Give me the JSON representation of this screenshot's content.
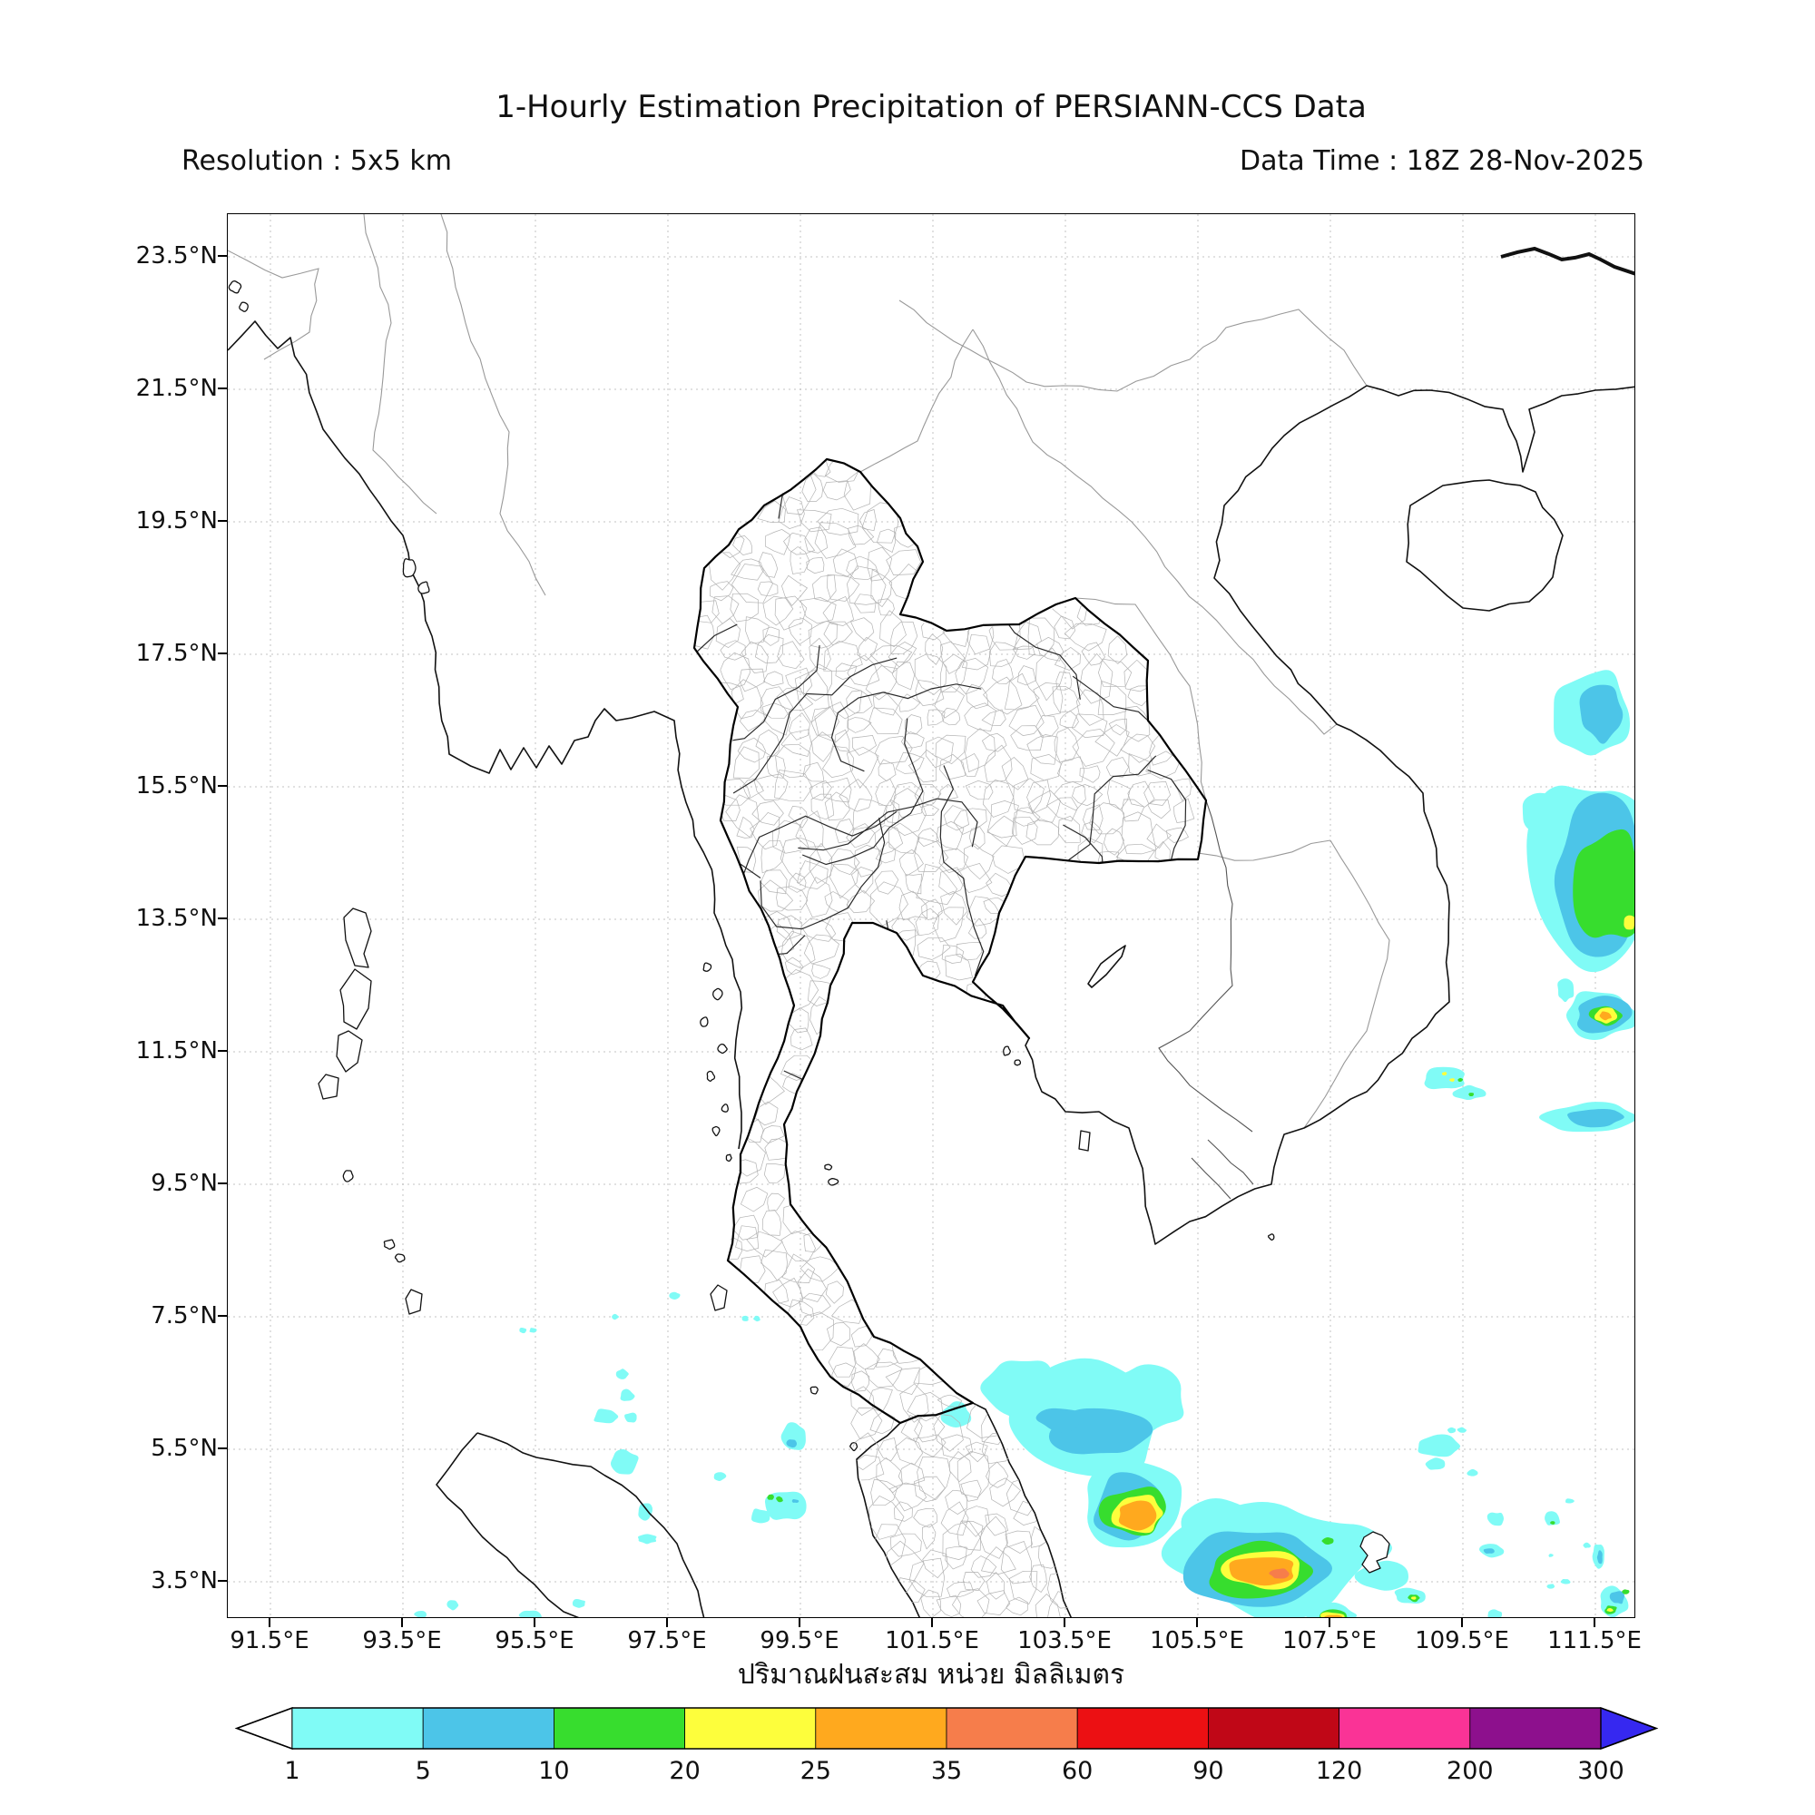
{
  "header": {
    "title": "1-Hourly Estimation Precipitation of PERSIANN-CCS Data",
    "resolution": "Resolution : 5x5 km",
    "data_time": "Data Time : 18Z 28-Nov-2025"
  },
  "map": {
    "lat_ticks": [
      "23.5°N",
      "21.5°N",
      "19.5°N",
      "17.5°N",
      "15.5°N",
      "13.5°N",
      "11.5°N",
      "9.5°N",
      "7.5°N",
      "5.5°N",
      "3.5°N"
    ],
    "lon_ticks": [
      "91.5°E",
      "93.5°E",
      "95.5°E",
      "97.5°E",
      "99.5°E",
      "101.5°E",
      "103.5°E",
      "105.5°E",
      "107.5°E",
      "109.5°E",
      "111.5°E"
    ],
    "grid_color": "#c3c3c3",
    "coast_color": "#111111",
    "border_color": "#999999",
    "precip_features": [
      {
        "area": "Gulf of Thailand / east of Malay Peninsula",
        "center": "103.8E 5.9N",
        "peak_mm": "5-10"
      },
      {
        "area": "east of Malay Peninsula",
        "center": "104.4E 4.2N",
        "peak_mm": "25-35"
      },
      {
        "area": "South China Sea south",
        "center": "106.3E 3.6N",
        "peak_mm": "35-60"
      },
      {
        "area": "South China Sea east edge",
        "center": "111.8E 13.5N",
        "peak_mm": "20-25"
      },
      {
        "area": "east of Vietnam coast",
        "center": "111.6E 12.0N",
        "peak_mm": "25-35"
      },
      {
        "area": "near Vietnam south coast",
        "center": "109.3E 11.2N",
        "peak_mm": "20-25"
      },
      {
        "area": "Andaman Sea scattered cells",
        "center": "95-99E 3-7.5N",
        "peak_mm": "1-10"
      }
    ]
  },
  "caption": "ปริมาณฝนสะสม หน่วย มิลลิเมตร",
  "colorbar": {
    "levels": [
      "1",
      "5",
      "10",
      "20",
      "25",
      "35",
      "60",
      "90",
      "120",
      "200",
      "300"
    ],
    "colors": [
      "#80fbf6",
      "#4cc5e8",
      "#37dd2e",
      "#fdfe3c",
      "#ffa91e",
      "#f67d4b",
      "#ec1013",
      "#c00717",
      "#fa3396",
      "#8d108d"
    ],
    "left_arrow_color": "#ffffff",
    "right_arrow_color": "#3628f0",
    "outline": "#000000"
  }
}
